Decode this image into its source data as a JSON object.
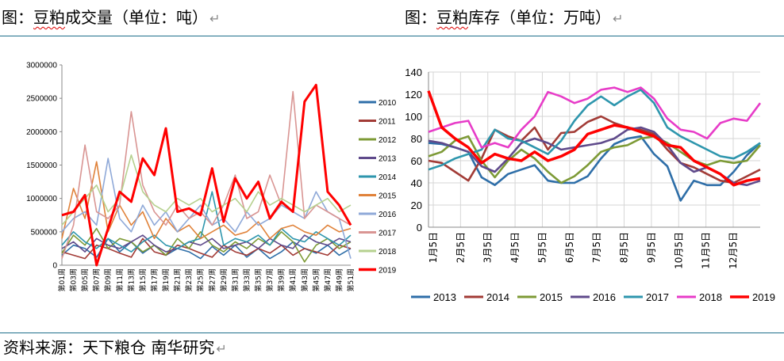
{
  "left_title": {
    "prefix": "图：",
    "wavy": "豆粕",
    "rest": "成交量（单位：吨）"
  },
  "right_title": {
    "prefix": "图：",
    "wavy": "豆粕",
    "rest": "库存（单位：万吨）"
  },
  "source": "资料来源：天下粮仓 南华研究",
  "return_glyph": "↵",
  "chart_data": [
    {
      "type": "line",
      "title": "",
      "xlabel": "",
      "ylabel": "",
      "ylim": [
        0,
        3000000
      ],
      "yticks": [
        "0",
        "500000",
        "1000000",
        "1500000",
        "2000000",
        "2500000",
        "3000000"
      ],
      "grid": false,
      "legend_position": "right",
      "x_labels": [
        "第01周",
        "第03周",
        "第05周",
        "第07周",
        "第09周",
        "第11周",
        "第13周",
        "第15周",
        "第17周",
        "第19周",
        "第21周",
        "第23周",
        "第25周",
        "第27周",
        "第29周",
        "第31周",
        "第33周",
        "第35周",
        "第37周",
        "第39周",
        "第41周",
        "第43周",
        "第45周",
        "第47周",
        "第49周",
        "第51周"
      ],
      "series": [
        {
          "name": "2010",
          "color": "#2e6ea8",
          "values": [
            150000,
            300000,
            250000,
            120000,
            400000,
            200000,
            350000,
            180000,
            300000,
            150000,
            250000,
            200000,
            100000,
            280000,
            150000,
            300000,
            120000,
            250000,
            100000,
            200000,
            350000,
            250000,
            180000,
            300000,
            150000,
            250000
          ]
        },
        {
          "name": "2011",
          "color": "#a23b36",
          "values": [
            200000,
            150000,
            100000,
            300000,
            250000,
            180000,
            120000,
            400000,
            200000,
            150000,
            300000,
            250000,
            180000,
            120000,
            300000,
            200000,
            150000,
            250000,
            180000,
            300000,
            150000,
            250000,
            200000,
            150000,
            300000,
            250000
          ]
        },
        {
          "name": "2012",
          "color": "#7d9a36",
          "values": [
            180000,
            450000,
            300000,
            550000,
            250000,
            400000,
            350000,
            200000,
            300000,
            150000,
            400000,
            250000,
            500000,
            300000,
            200000,
            350000,
            250000,
            400000,
            300000,
            500000,
            350000,
            50000,
            300000,
            400000,
            250000,
            350000
          ]
        },
        {
          "name": "2013",
          "color": "#5f4a8b",
          "values": [
            250000,
            350000,
            200000,
            400000,
            300000,
            250000,
            350000,
            450000,
            300000,
            200000,
            250000,
            350000,
            300000,
            400000,
            250000,
            300000,
            350000,
            250000,
            400000,
            300000,
            250000,
            450000,
            350000,
            300000,
            400000,
            350000
          ]
        },
        {
          "name": "2014",
          "color": "#2e96ad",
          "values": [
            300000,
            500000,
            350000,
            250000,
            400000,
            300000,
            200000,
            350000,
            450000,
            300000,
            250000,
            350000,
            400000,
            1100000,
            300000,
            400000,
            350000,
            450000,
            300000,
            550000,
            400000,
            350000,
            500000,
            400000,
            300000,
            450000
          ]
        },
        {
          "name": "2015",
          "color": "#e0823a",
          "values": [
            400000,
            1150000,
            700000,
            1550000,
            500000,
            900000,
            600000,
            800000,
            400000,
            700000,
            500000,
            600000,
            400000,
            500000,
            600000,
            450000,
            500000,
            650000,
            400000,
            550000,
            600000,
            500000,
            450000,
            600000,
            500000,
            550000
          ]
        },
        {
          "name": "2016",
          "color": "#8fa9d8",
          "values": [
            500000,
            700000,
            800000,
            600000,
            1600000,
            700000,
            500000,
            900000,
            600000,
            800000,
            500000,
            700000,
            900000,
            600000,
            700000,
            500000,
            800000,
            600000,
            700000,
            900000,
            800000,
            700000,
            1100000,
            800000,
            700000,
            100000
          ]
        },
        {
          "name": "2017",
          "color": "#d99593",
          "values": [
            100000,
            600000,
            1800000,
            800000,
            700000,
            900000,
            2300000,
            1200000,
            800000,
            600000,
            900000,
            700000,
            800000,
            600000,
            900000,
            1350000,
            700000,
            800000,
            1350000,
            900000,
            2600000,
            700000,
            900000,
            800000,
            700000,
            600000
          ]
        },
        {
          "name": "2018",
          "color": "#b6d18f",
          "values": [
            600000,
            800000,
            1000000,
            1200000,
            800000,
            1000000,
            1650000,
            1100000,
            900000,
            800000,
            1000000,
            900000,
            1000000,
            800000,
            900000,
            1000000,
            800000,
            1100000,
            900000,
            1000000,
            900000,
            800000,
            900000,
            1000000,
            800000,
            900000
          ]
        },
        {
          "name": "2019",
          "color": "#ff0000",
          "values": [
            750000,
            800000,
            1050000,
            0,
            550000,
            1100000,
            950000,
            1600000,
            1350000,
            2050000,
            800000,
            850000,
            750000,
            1450000,
            650000,
            1300000,
            1000000,
            1250000,
            700000,
            950000,
            800000,
            2450000,
            2700000,
            1100000,
            900000,
            600000
          ]
        }
      ]
    },
    {
      "type": "line",
      "title": "",
      "xlabel": "",
      "ylabel": "",
      "ylim": [
        0,
        140
      ],
      "yticks": [
        "0",
        "20",
        "40",
        "60",
        "80",
        "100",
        "120",
        "140"
      ],
      "grid": true,
      "legend_position": "bottom",
      "x_labels": [
        "1月5日",
        "2月5日",
        "3月5日",
        "4月5日",
        "5月5日",
        "6月5日",
        "7月5日",
        "8月5日",
        "9月5日",
        "10月5日",
        "11月5日",
        "12月5日"
      ],
      "series": [
        {
          "name": "2013",
          "color": "#2e6ea8",
          "values": [
            76,
            75,
            72,
            68,
            45,
            38,
            48,
            52,
            56,
            42,
            40,
            40,
            46,
            62,
            75,
            80,
            82,
            66,
            55,
            24,
            42,
            38,
            38,
            50,
            65,
            76
          ]
        },
        {
          "name": "2014",
          "color": "#a23b36",
          "values": [
            60,
            58,
            50,
            42,
            62,
            88,
            82,
            78,
            90,
            70,
            85,
            86,
            95,
            100,
            94,
            90,
            88,
            84,
            70,
            58,
            54,
            48,
            42,
            40,
            46,
            52
          ]
        },
        {
          "name": "2015",
          "color": "#7d9a36",
          "values": [
            64,
            68,
            78,
            82,
            60,
            45,
            60,
            70,
            62,
            50,
            40,
            46,
            56,
            68,
            72,
            74,
            80,
            82,
            76,
            68,
            60,
            56,
            60,
            58,
            60,
            74
          ]
        },
        {
          "name": "2016",
          "color": "#5f4a8b",
          "values": [
            78,
            76,
            72,
            68,
            55,
            50,
            62,
            76,
            80,
            76,
            70,
            72,
            74,
            76,
            80,
            88,
            90,
            86,
            74,
            58,
            50,
            54,
            48,
            40,
            38,
            42
          ]
        },
        {
          "name": "2017",
          "color": "#2e96ad",
          "values": [
            52,
            56,
            62,
            66,
            70,
            88,
            80,
            78,
            72,
            66,
            78,
            96,
            110,
            118,
            110,
            118,
            124,
            112,
            90,
            82,
            76,
            70,
            64,
            62,
            68,
            76
          ]
        },
        {
          "name": "2018",
          "color": "#e73cc8",
          "values": [
            86,
            90,
            94,
            96,
            72,
            76,
            72,
            88,
            100,
            122,
            118,
            112,
            116,
            124,
            126,
            122,
            126,
            116,
            98,
            88,
            86,
            80,
            94,
            98,
            96,
            112
          ]
        },
        {
          "name": "2019",
          "color": "#ff0000",
          "values": [
            123,
            90,
            80,
            72,
            58,
            66,
            62,
            60,
            68,
            60,
            64,
            70,
            84,
            88,
            92,
            90,
            86,
            82,
            74,
            72,
            60,
            54,
            48,
            38,
            42,
            44
          ]
        }
      ]
    }
  ]
}
